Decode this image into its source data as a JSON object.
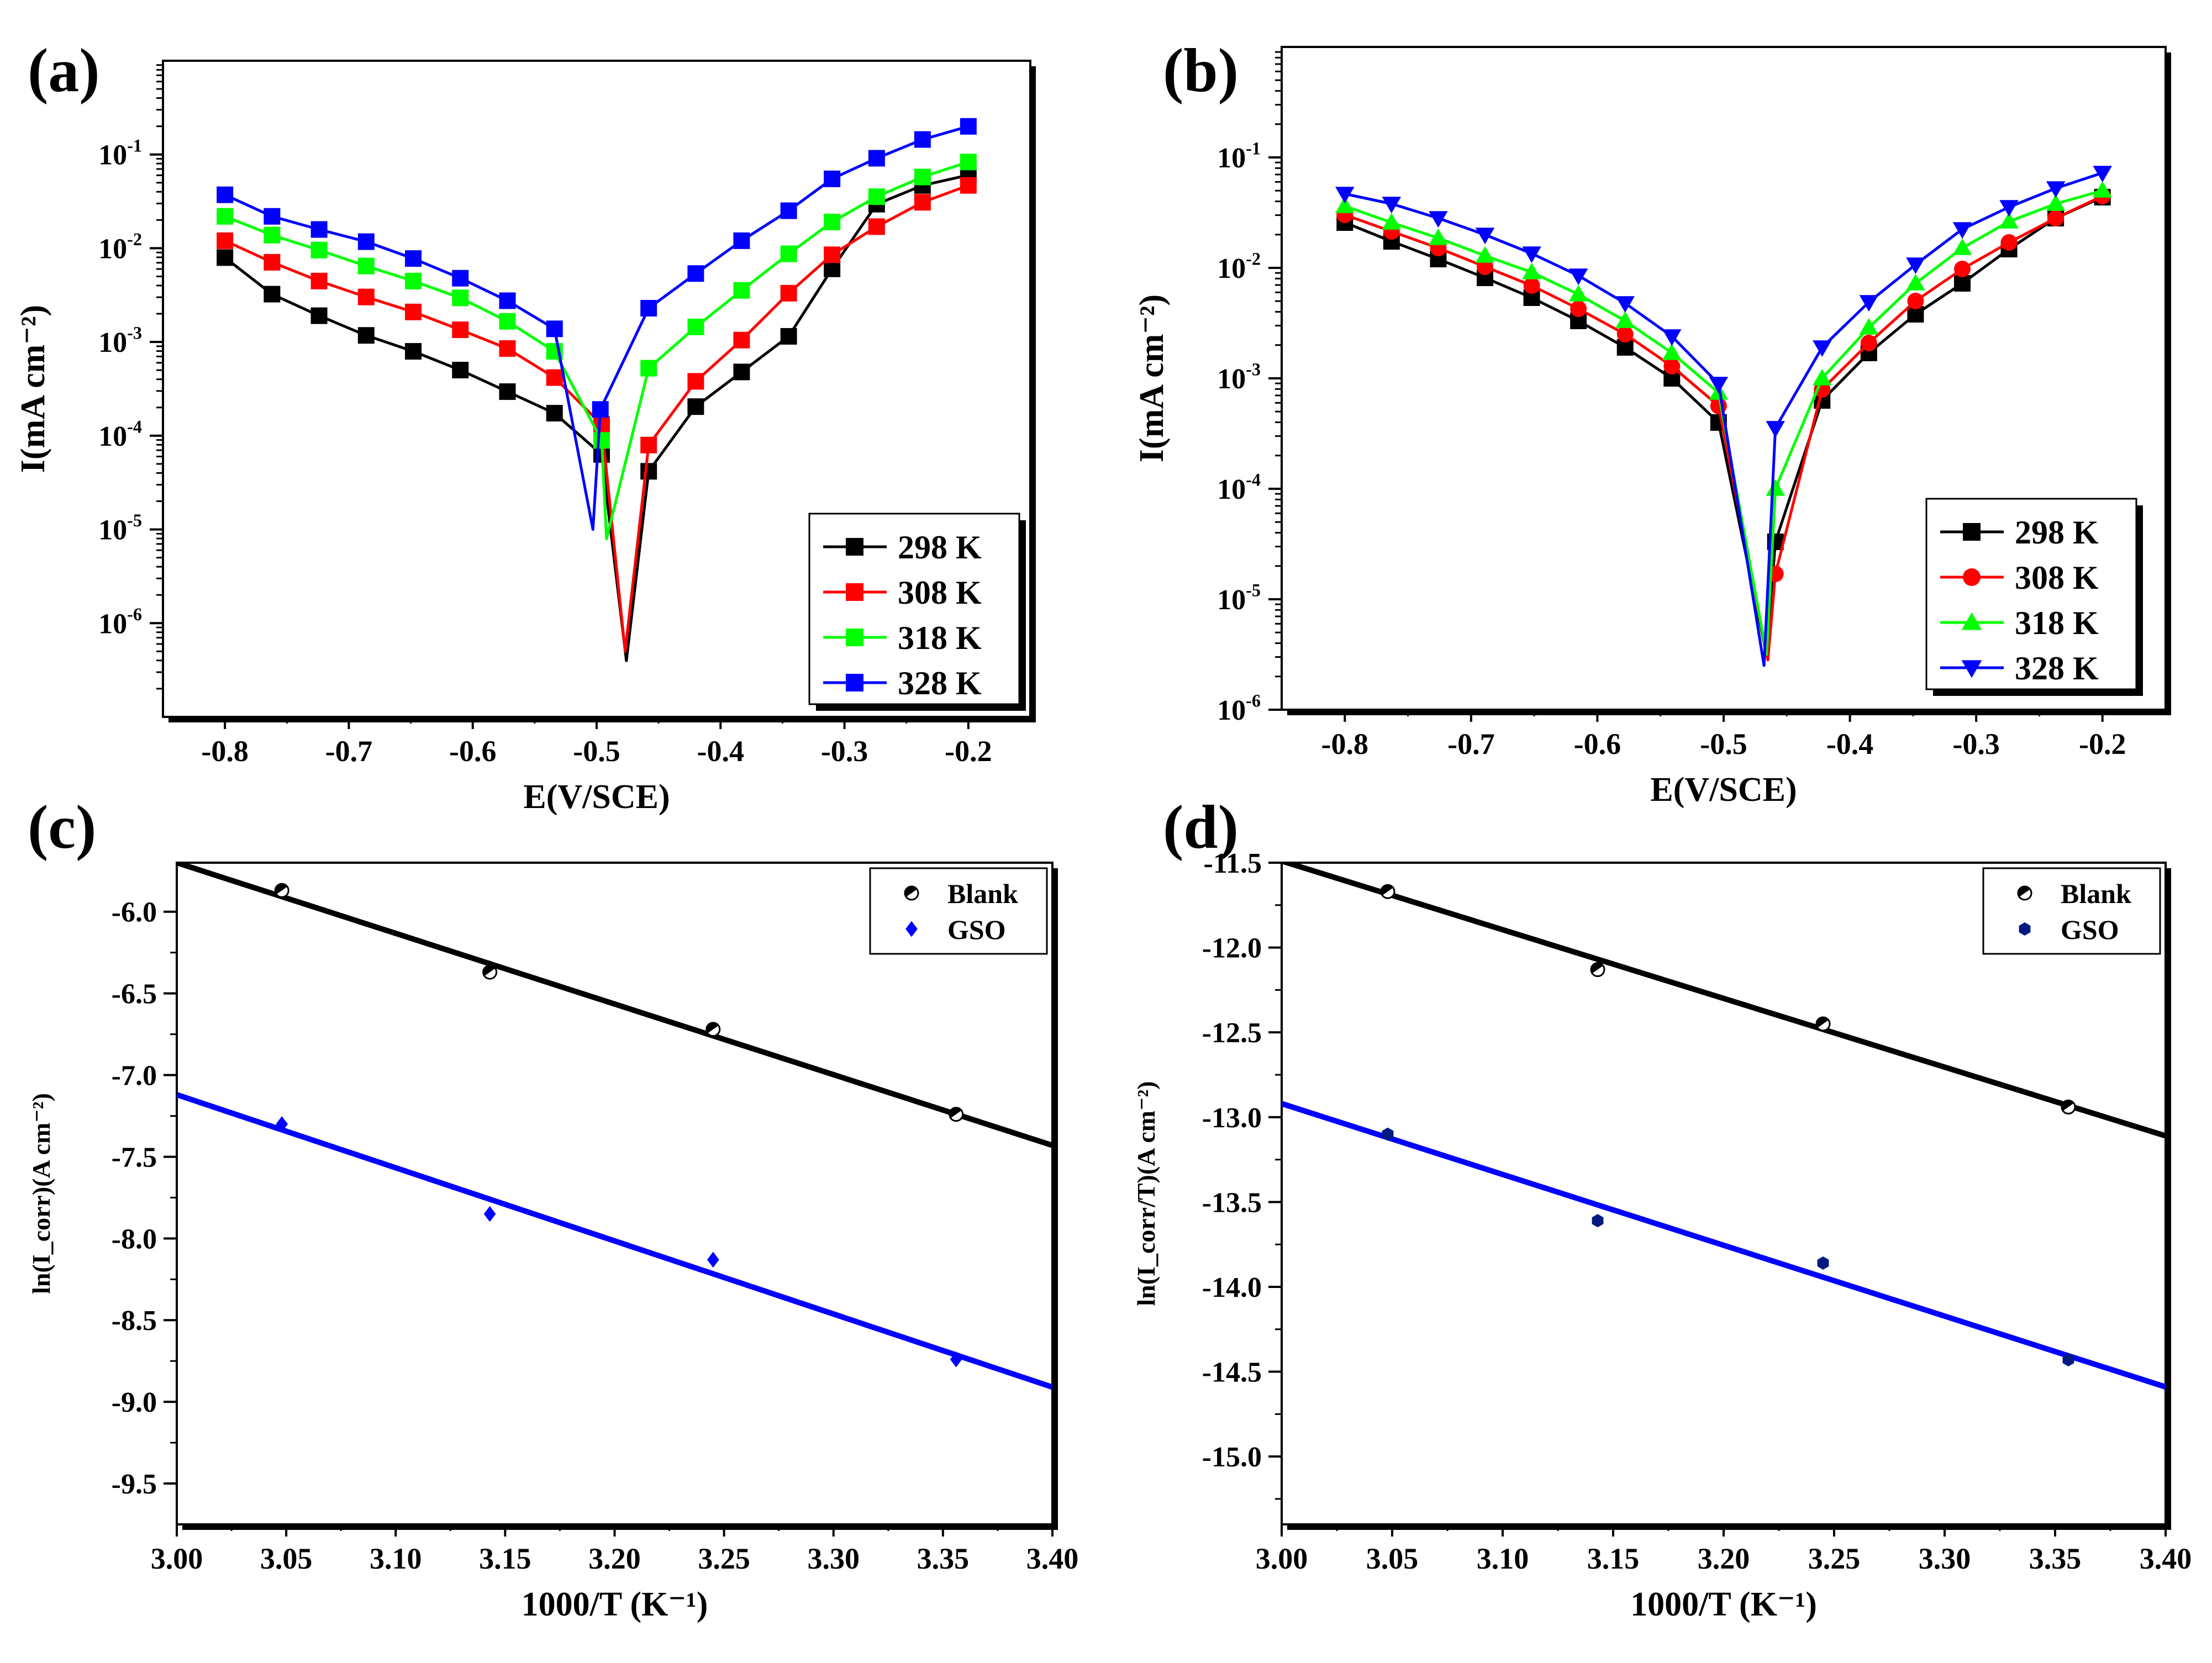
{
  "figure": {
    "panels": [
      {
        "label": "(a)"
      },
      {
        "label": "(b)"
      },
      {
        "label": "(c)"
      },
      {
        "label": "(d)"
      }
    ]
  },
  "chart_data": [
    {
      "type": "line",
      "panel": "(a)",
      "xlabel": "E(V/SCE)",
      "ylabel": "I(mA cm⁻²)",
      "yscale": "log",
      "xlim": [
        -0.85,
        -0.15
      ],
      "ylim_exp": [
        -7,
        0
      ],
      "xticks": [
        -0.8,
        -0.7,
        -0.6,
        -0.5,
        -0.4,
        -0.3,
        -0.2
      ],
      "xtick_labels": [
        "-0.8",
        "-0.7",
        "-0.6",
        "-0.5",
        "-0.4",
        "-0.3",
        "-0.2"
      ],
      "yticks_exp": [
        -6,
        -5,
        -4,
        -3,
        -2,
        -1
      ],
      "ytick_labels": [
        "10",
        "10",
        "10",
        "10",
        "10",
        "10"
      ],
      "ytick_exps": [
        "-6",
        "-5",
        "-4",
        "-3",
        "-2",
        "-1"
      ],
      "legend": {
        "position": "bottom-right"
      },
      "series": [
        {
          "name": "298 K",
          "color": "#000000",
          "marker": "square",
          "ecorr": -0.476,
          "min_log": -6.4,
          "x": [
            -0.8,
            -0.762,
            -0.724,
            -0.686,
            -0.648,
            -0.61,
            -0.572,
            -0.534,
            -0.496,
            -0.458,
            -0.42,
            -0.383,
            -0.345,
            -0.31,
            -0.274,
            -0.237,
            -0.2
          ],
          "log_i": [
            -2.1,
            -2.49,
            -2.72,
            -2.93,
            -3.1,
            -3.3,
            -3.53,
            -3.76,
            -4.2,
            -4.38,
            -3.69,
            -3.32,
            -2.94,
            -2.22,
            -1.53,
            -1.33,
            -1.22
          ]
        },
        {
          "name": "308 K",
          "color": "#ff0000",
          "marker": "square",
          "ecorr": -0.477,
          "min_log": -6.3,
          "x": [
            -0.8,
            -0.762,
            -0.724,
            -0.686,
            -0.648,
            -0.61,
            -0.572,
            -0.534,
            -0.496,
            -0.458,
            -0.42,
            -0.383,
            -0.345,
            -0.31,
            -0.274,
            -0.237,
            -0.2
          ],
          "log_i": [
            -1.92,
            -2.15,
            -2.35,
            -2.52,
            -2.68,
            -2.87,
            -3.07,
            -3.38,
            -3.88,
            -4.1,
            -3.42,
            -2.98,
            -2.48,
            -2.07,
            -1.77,
            -1.51,
            -1.33
          ]
        },
        {
          "name": "318 K",
          "color": "#00ff00",
          "marker": "square",
          "ecorr": -0.492,
          "min_log": -5.1,
          "x": [
            -0.8,
            -0.762,
            -0.724,
            -0.686,
            -0.648,
            -0.61,
            -0.572,
            -0.534,
            -0.496,
            -0.458,
            -0.42,
            -0.383,
            -0.345,
            -0.31,
            -0.274,
            -0.237,
            -0.2
          ],
          "log_i": [
            -1.66,
            -1.86,
            -2.02,
            -2.19,
            -2.35,
            -2.53,
            -2.78,
            -3.1,
            -4.05,
            -3.28,
            -2.84,
            -2.45,
            -2.06,
            -1.72,
            -1.45,
            -1.24,
            -1.08
          ]
        },
        {
          "name": "328 K",
          "color": "#0000ff",
          "marker": "square",
          "ecorr": -0.503,
          "min_log": -5.0,
          "x": [
            -0.8,
            -0.762,
            -0.724,
            -0.686,
            -0.648,
            -0.61,
            -0.572,
            -0.534,
            -0.497,
            -0.458,
            -0.42,
            -0.383,
            -0.345,
            -0.31,
            -0.274,
            -0.237,
            -0.2
          ],
          "log_i": [
            -1.43,
            -1.66,
            -1.8,
            -1.93,
            -2.11,
            -2.32,
            -2.56,
            -2.86,
            -3.72,
            -2.64,
            -2.27,
            -1.92,
            -1.6,
            -1.26,
            -1.04,
            -0.84,
            -0.7
          ]
        }
      ]
    },
    {
      "type": "line",
      "panel": "(b)",
      "xlabel": "E(V/SCE)",
      "ylabel": "I(mA cm⁻²)",
      "yscale": "log",
      "xlim": [
        -0.85,
        -0.15
      ],
      "ylim_exp": [
        -6,
        0
      ],
      "xticks": [
        -0.8,
        -0.7,
        -0.6,
        -0.5,
        -0.4,
        -0.3,
        -0.2
      ],
      "xtick_labels": [
        "-0.8",
        "-0.7",
        "-0.6",
        "-0.5",
        "-0.4",
        "-0.3",
        "-0.2"
      ],
      "yticks_exp": [
        -6,
        -5,
        -4,
        -3,
        -2,
        -1
      ],
      "ytick_labels": [
        "10",
        "10",
        "10",
        "10",
        "10",
        "10"
      ],
      "ytick_exps": [
        "-6",
        "-5",
        "-4",
        "-3",
        "-2",
        "-1"
      ],
      "legend": {
        "position": "bottom-right"
      },
      "series": [
        {
          "name": "298 K",
          "color": "#000000",
          "marker": "square",
          "ecorr": -0.466,
          "min_log": -5.5,
          "x": [
            -0.8,
            -0.763,
            -0.726,
            -0.689,
            -0.652,
            -0.615,
            -0.578,
            -0.541,
            -0.504,
            -0.459,
            -0.422,
            -0.385,
            -0.348,
            -0.311,
            -0.274,
            -0.237,
            -0.2
          ],
          "log_i": [
            -1.59,
            -1.76,
            -1.92,
            -2.09,
            -2.27,
            -2.48,
            -2.72,
            -3.0,
            -3.4,
            -4.48,
            -3.2,
            -2.77,
            -2.42,
            -2.14,
            -1.83,
            -1.55,
            -1.36
          ]
        },
        {
          "name": "308 K",
          "color": "#ff0000",
          "marker": "circle",
          "ecorr": -0.465,
          "min_log": -5.55,
          "x": [
            -0.8,
            -0.763,
            -0.726,
            -0.689,
            -0.652,
            -0.615,
            -0.578,
            -0.541,
            -0.504,
            -0.459,
            -0.422,
            -0.385,
            -0.348,
            -0.311,
            -0.274,
            -0.237,
            -0.2
          ],
          "log_i": [
            -1.52,
            -1.67,
            -1.82,
            -1.99,
            -2.16,
            -2.37,
            -2.6,
            -2.89,
            -3.25,
            -4.77,
            -3.1,
            -2.68,
            -2.3,
            -2.01,
            -1.77,
            -1.55,
            -1.35
          ]
        },
        {
          "name": "318 K",
          "color": "#00ff00",
          "marker": "triangle-up",
          "ecorr": -0.466,
          "min_log": -5.5,
          "x": [
            -0.8,
            -0.763,
            -0.726,
            -0.689,
            -0.652,
            -0.615,
            -0.578,
            -0.541,
            -0.504,
            -0.459,
            -0.422,
            -0.385,
            -0.348,
            -0.311,
            -0.274,
            -0.237,
            -0.2
          ],
          "log_i": [
            -1.44,
            -1.59,
            -1.73,
            -1.89,
            -2.04,
            -2.24,
            -2.48,
            -2.77,
            -3.13,
            -4.0,
            -3.0,
            -2.54,
            -2.14,
            -1.82,
            -1.58,
            -1.42,
            -1.3
          ]
        },
        {
          "name": "328 K",
          "color": "#0000ff",
          "marker": "triangle-down",
          "ecorr": -0.468,
          "min_log": -5.6,
          "x": [
            -0.8,
            -0.763,
            -0.726,
            -0.689,
            -0.652,
            -0.615,
            -0.578,
            -0.541,
            -0.504,
            -0.459,
            -0.422,
            -0.385,
            -0.348,
            -0.311,
            -0.274,
            -0.237,
            -0.2
          ],
          "log_i": [
            -1.33,
            -1.42,
            -1.55,
            -1.7,
            -1.87,
            -2.07,
            -2.32,
            -2.62,
            -3.05,
            -3.45,
            -2.72,
            -2.31,
            -1.97,
            -1.65,
            -1.45,
            -1.28,
            -1.14
          ]
        }
      ]
    },
    {
      "type": "scatter",
      "panel": "(c)",
      "xlabel": "1000/T (K⁻¹)",
      "ylabel": "ln(I_corr)(A cm⁻²)",
      "xlim": [
        3.0,
        3.4
      ],
      "ylim": [
        -9.75,
        -5.7
      ],
      "xticks": [
        3.0,
        3.05,
        3.1,
        3.15,
        3.2,
        3.25,
        3.3,
        3.35,
        3.4
      ],
      "xtick_labels": [
        "3.00",
        "3.05",
        "3.10",
        "3.15",
        "3.20",
        "3.25",
        "3.30",
        "3.35",
        "3.40"
      ],
      "yticks": [
        -9.5,
        -9.0,
        -8.5,
        -8.0,
        -7.5,
        -7.0,
        -6.5,
        -6.0
      ],
      "ytick_labels": [
        "-9.5",
        "-9.0",
        "-8.5",
        "-8.0",
        "-7.5",
        "-7.0",
        "-6.5",
        "-6.0"
      ],
      "legend": {
        "position": "top-right"
      },
      "series": [
        {
          "name": "Blank",
          "color": "#000000",
          "marker": "half-circle",
          "x": [
            3.048,
            3.143,
            3.245,
            3.356
          ],
          "y": [
            -5.87,
            -6.37,
            -6.72,
            -7.24
          ],
          "fit": {
            "x": [
              3.0,
              3.4
            ],
            "y": [
              -5.7,
              -7.43
            ]
          }
        },
        {
          "name": "GSO",
          "color": "#0000ff",
          "marker": "diamond",
          "x": [
            3.048,
            3.143,
            3.245,
            3.356
          ],
          "y": [
            -7.3,
            -7.85,
            -8.13,
            -8.74
          ],
          "fit": {
            "x": [
              3.0,
              3.4
            ],
            "y": [
              -7.12,
              -8.91
            ]
          }
        }
      ]
    },
    {
      "type": "scatter",
      "panel": "(d)",
      "xlabel": "1000/T (K⁻¹)",
      "ylabel": "ln(I_corr/T)(A cm⁻²)",
      "xlim": [
        3.0,
        3.4
      ],
      "ylim": [
        -15.4,
        -11.5
      ],
      "xticks": [
        3.0,
        3.05,
        3.1,
        3.15,
        3.2,
        3.25,
        3.3,
        3.35,
        3.4
      ],
      "xtick_labels": [
        "3.00",
        "3.05",
        "3.10",
        "3.15",
        "3.20",
        "3.25",
        "3.30",
        "3.35",
        "3.40"
      ],
      "yticks": [
        -15.0,
        -14.5,
        -14.0,
        -13.5,
        -13.0,
        -12.5,
        -12.0,
        -11.5
      ],
      "ytick_labels": [
        "-15.0",
        "-14.5",
        "-14.0",
        "-13.5",
        "-13.0",
        "-12.5",
        "-12.0",
        "-11.5"
      ],
      "legend": {
        "position": "top-right"
      },
      "series": [
        {
          "name": "Blank",
          "color": "#000000",
          "marker": "half-circle",
          "x": [
            3.048,
            3.143,
            3.245,
            3.356
          ],
          "y": [
            -11.67,
            -12.13,
            -12.45,
            -12.94
          ],
          "fit": {
            "x": [
              3.0,
              3.4
            ],
            "y": [
              -11.49,
              -13.11
            ]
          }
        },
        {
          "name": "GSO",
          "color": "#001a80",
          "marker": "hexagon",
          "x": [
            3.048,
            3.143,
            3.245,
            3.356
          ],
          "y": [
            -13.1,
            -13.61,
            -13.86,
            -14.43
          ],
          "fit": {
            "x": [
              3.0,
              3.4
            ],
            "y": [
              -12.92,
              -14.59
            ]
          }
        }
      ]
    }
  ]
}
